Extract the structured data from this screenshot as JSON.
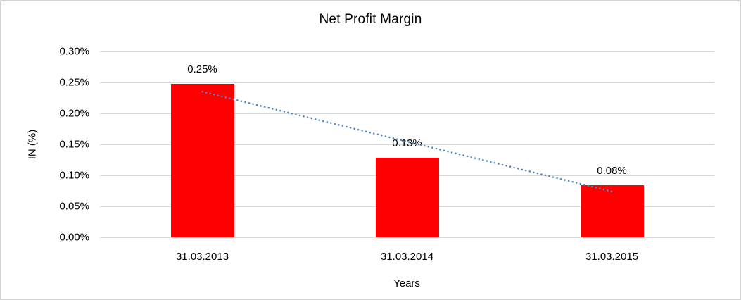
{
  "frame": {
    "background": "#ffffff",
    "border_color": "#d2d2d2"
  },
  "chart_data": {
    "type": "bar",
    "title": "Net Profit Margin",
    "xlabel": "Years",
    "ylabel": "IN (%)",
    "categories": [
      "31.03.2013",
      "31.03.2014",
      "31.03.2015"
    ],
    "series": [
      {
        "name": "Net Profit Margin",
        "values": [
          0.248,
          0.128,
          0.084
        ],
        "value_labels": [
          "0.25%",
          "0.13%",
          "0.08%"
        ],
        "color": "#ff0000"
      }
    ],
    "y_ticks": [
      "0.30%",
      "0.25%",
      "0.20%",
      "0.15%",
      "0.10%",
      "0.05%",
      "0.00%"
    ],
    "ylim": [
      0,
      0.3
    ],
    "unit": "%",
    "grid": true,
    "gridline_color": "#d9d9d9",
    "legend": "none",
    "trendline": {
      "type": "linear",
      "style": "dotted",
      "color": "#4e87c6",
      "start_value": 0.235,
      "end_value": 0.074
    }
  }
}
